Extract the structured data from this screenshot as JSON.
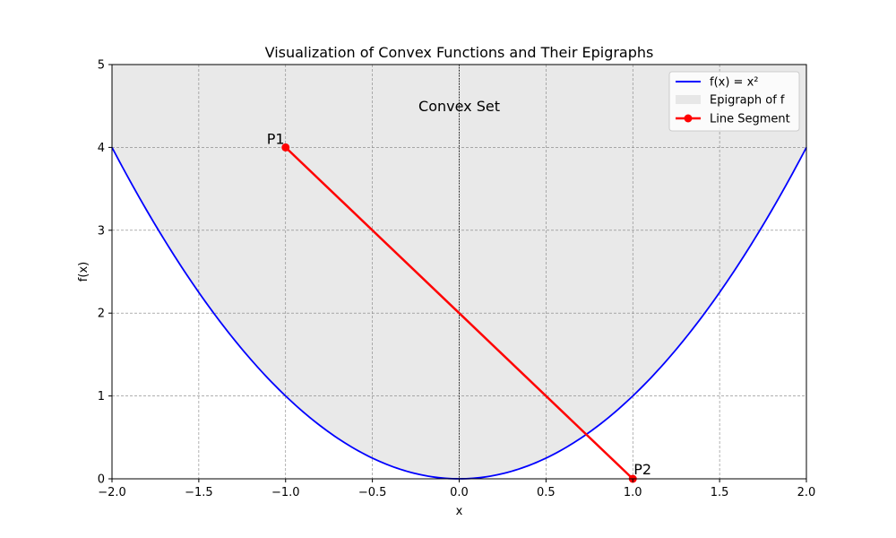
{
  "chart_data": {
    "type": "line",
    "title": "Visualization of Convex Functions and Their Epigraphs",
    "xlabel": "x",
    "ylabel": "f(x)",
    "xlim": [
      -2,
      2
    ],
    "ylim": [
      0,
      5
    ],
    "xticks": [
      -2.0,
      -1.5,
      -1.0,
      -0.5,
      0.0,
      0.5,
      1.0,
      1.5,
      2.0
    ],
    "xtick_labels": [
      "−2.0",
      "−1.5",
      "−1.0",
      "−0.5",
      "0.0",
      "0.5",
      "1.0",
      "1.5",
      "2.0"
    ],
    "yticks": [
      0,
      1,
      2,
      3,
      4,
      5
    ],
    "ytick_labels": [
      "0",
      "1",
      "2",
      "3",
      "4",
      "5"
    ],
    "grid": true,
    "legend_position": "top-right",
    "series": [
      {
        "name": "f(x) = x²",
        "kind": "line",
        "function": "x^2",
        "color": "#0000ff"
      },
      {
        "name": "Epigraph of f",
        "kind": "area",
        "region": "above f(x) up to y = 5",
        "color": "#d3d3d3"
      },
      {
        "name": "Line Segment",
        "kind": "line-with-markers",
        "x": [
          -1,
          1
        ],
        "y": [
          4,
          0
        ],
        "color": "#ff0000"
      }
    ],
    "annotations": [
      {
        "text": "P1",
        "x": -1,
        "y": 4
      },
      {
        "text": "P2",
        "x": 1,
        "y": 0
      },
      {
        "text": "Convex Set",
        "x": 0,
        "y": 4.5
      }
    ],
    "reference_lines": {
      "vertical_x": 0,
      "color": "#000000"
    }
  }
}
